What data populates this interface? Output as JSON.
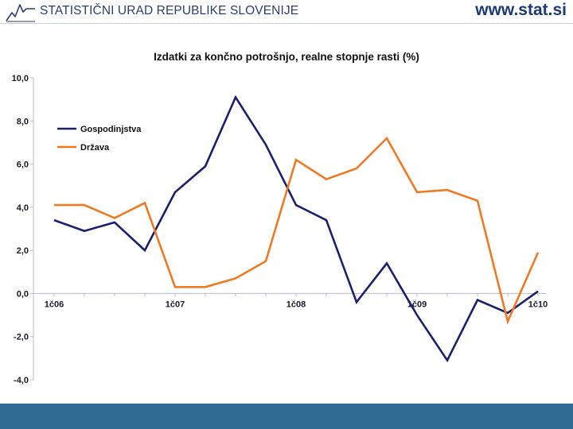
{
  "header": {
    "organization": "STATISTIČNI URAD REPUBLIKE SLOVENIJE",
    "website": "www.stat.si"
  },
  "colors": {
    "brand": "#1d3a78",
    "footer": "#2f6a92",
    "series_households": "#1a1f6e",
    "series_state": "#f07a22"
  },
  "chart_data": {
    "type": "line",
    "title": "Izdatki za končno potrošnjo, realne stopnje rasti (%)",
    "xlabel": "",
    "ylabel": "",
    "ylim": [
      -4,
      10
    ],
    "yticks": [
      -4,
      -2,
      0,
      2,
      4,
      6,
      8,
      10
    ],
    "ytick_labels": [
      "-4,0",
      "-2,0",
      "0,0",
      "2,0",
      "4,0",
      "6,0",
      "8,0",
      "10,0"
    ],
    "x_count": 17,
    "x_tick_labels": [
      {
        "index": 0,
        "label": "1č06"
      },
      {
        "index": 4,
        "label": "1č07"
      },
      {
        "index": 8,
        "label": "1č08"
      },
      {
        "index": 12,
        "label": "1č09"
      },
      {
        "index": 16,
        "label": "1č10"
      }
    ],
    "legend_position": "upper-left",
    "grid": false,
    "series": [
      {
        "name": "Gospodinjstva",
        "color": "#1a1f6e",
        "values": [
          3.4,
          2.9,
          3.3,
          2.0,
          4.7,
          5.9,
          9.1,
          6.9,
          4.1,
          3.4,
          -0.4,
          1.4,
          -1.0,
          -3.1,
          -0.3,
          -0.9,
          0.1
        ]
      },
      {
        "name": "Država",
        "color": "#f07a22",
        "values": [
          4.1,
          4.1,
          3.5,
          4.2,
          0.3,
          0.3,
          0.7,
          1.5,
          6.2,
          5.3,
          5.8,
          7.2,
          4.7,
          4.8,
          4.3,
          -1.3,
          1.9
        ]
      }
    ]
  }
}
